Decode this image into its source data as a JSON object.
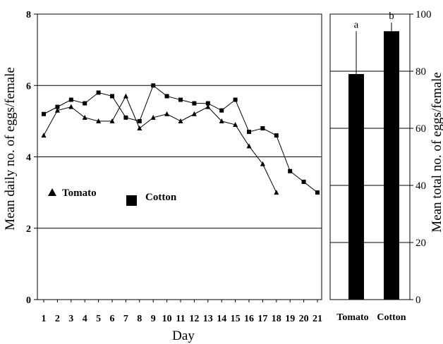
{
  "chart_data": [
    {
      "type": "line",
      "xlabel": "Day",
      "ylabel": "Mean daily no. of eggs/female",
      "ylim": [
        0,
        8
      ],
      "yticks": [
        "0",
        "2",
        "4",
        "6",
        "8"
      ],
      "x": [
        1,
        2,
        3,
        4,
        5,
        6,
        7,
        8,
        9,
        10,
        11,
        12,
        13,
        14,
        15,
        16,
        17,
        18,
        19,
        20,
        21
      ],
      "x_tick_labels": [
        "1",
        "2",
        "3",
        "4",
        "5",
        "6",
        "7",
        "8",
        "9",
        "10",
        "11",
        "12",
        "13",
        "14",
        "15",
        "16",
        "17",
        "18",
        "19",
        "20",
        "21"
      ],
      "grid": "horizontal at 2, 4, 6",
      "series": [
        {
          "name": "Tomato",
          "marker": "triangle",
          "x": [
            1,
            2,
            3,
            4,
            5,
            6,
            7,
            8,
            9,
            10,
            11,
            12,
            13,
            14,
            15,
            16,
            17,
            18
          ],
          "values": [
            4.6,
            5.3,
            5.4,
            5.1,
            5.0,
            5.0,
            5.7,
            4.8,
            5.1,
            5.2,
            5.0,
            5.2,
            5.4,
            5.0,
            4.9,
            4.3,
            3.8,
            3.0
          ]
        },
        {
          "name": "Cotton",
          "marker": "square",
          "x": [
            1,
            2,
            3,
            4,
            5,
            6,
            7,
            8,
            9,
            10,
            11,
            12,
            13,
            14,
            15,
            16,
            17,
            18,
            19,
            20,
            21
          ],
          "values": [
            5.2,
            5.4,
            5.6,
            5.5,
            5.8,
            5.7,
            5.1,
            5.0,
            6.0,
            5.7,
            5.6,
            5.5,
            5.5,
            5.3,
            5.6,
            4.7,
            4.8,
            4.6,
            3.6,
            3.3,
            3.0
          ]
        }
      ]
    },
    {
      "type": "bar",
      "ylabel": "Mean total no. of eggs/female",
      "ylim": [
        0,
        100
      ],
      "yticks": [
        "0",
        "20",
        "40",
        "60",
        "80",
        "100"
      ],
      "categories": [
        "Tomato",
        "Cotton"
      ],
      "values": [
        79,
        94
      ],
      "error_top": [
        94,
        97
      ],
      "letters": [
        "a",
        "b"
      ],
      "grid": "horizontal at 20, 40, 60, 80"
    }
  ]
}
